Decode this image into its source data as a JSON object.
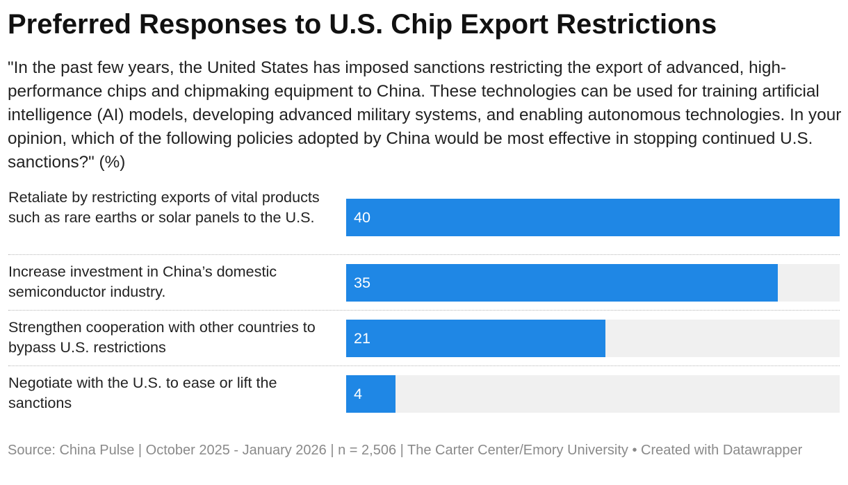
{
  "header": {
    "title": "Preferred Responses to U.S. Chip Export Restrictions",
    "subtitle": "\"In the past few years, the United States has imposed sanctions restricting the export of advanced, high-performance chips and chipmaking equipment to China. These technologies can be used for training artificial intelligence (AI) models, developing advanced military systems, and enabling autonomous technologies. In your opinion, which of the following policies adopted by China would be most effective in stopping continued U.S. sanctions?\" (%)"
  },
  "chart_data": {
    "type": "bar",
    "orientation": "horizontal",
    "categories": [
      "Retaliate by restricting exports of vital products such as rare earths or solar panels to the U.S.",
      "Increase investment in China’s domestic semiconductor industry.",
      "Strengthen cooperation with other countries to bypass U.S. restrictions",
      "Negotiate with the U.S. to ease or lift the sanctions"
    ],
    "values": [
      40,
      35,
      21,
      4
    ],
    "value_labels": [
      "40",
      "35",
      "21",
      "4"
    ],
    "xlim": [
      0,
      40
    ],
    "grid": false,
    "legend": "none",
    "colors": {
      "bar": "#1f87e5",
      "track": "#f0f0f0",
      "value_text": "#ffffff"
    }
  },
  "footer": {
    "source": "Source: China Pulse | October 2025 - January 2026 | n = 2,506 | The Carter Center/Emory University • Created with Datawrapper"
  }
}
